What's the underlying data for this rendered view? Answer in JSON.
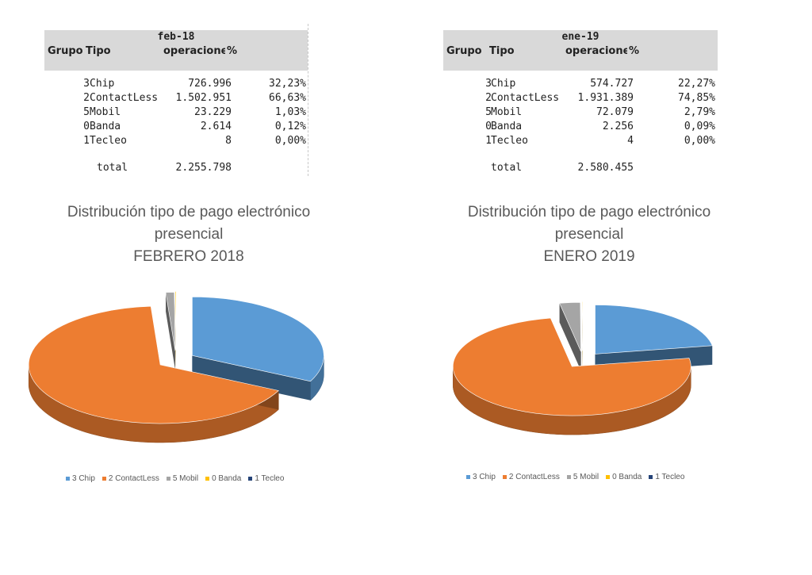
{
  "tables": [
    {
      "period": "feb-18",
      "headers": {
        "group": "Grupo",
        "type": "Tipo",
        "ops": "operacione:",
        "pct": "%"
      },
      "rows": [
        {
          "group": "3",
          "type": "Chip",
          "ops": "726.996",
          "pct": "32,23%"
        },
        {
          "group": "2",
          "type": "ContactLess",
          "ops": "1.502.951",
          "pct": "66,63%"
        },
        {
          "group": "5",
          "type": "Mobil",
          "ops": "23.229",
          "pct": "1,03%"
        },
        {
          "group": "0",
          "type": "Banda",
          "ops": "2.614",
          "pct": "0,12%"
        },
        {
          "group": "1",
          "type": "Tecleo",
          "ops": "8",
          "pct": "0,00%"
        }
      ],
      "total_label": "total",
      "total_value": "2.255.798"
    },
    {
      "period": "ene-19",
      "headers": {
        "group": "Grupo",
        "type": "Tipo",
        "ops": "operacione:",
        "pct": "%"
      },
      "rows": [
        {
          "group": "3",
          "type": "Chip",
          "ops": "574.727",
          "pct": "22,27%"
        },
        {
          "group": "2",
          "type": "ContactLess",
          "ops": "1.931.389",
          "pct": "74,85%"
        },
        {
          "group": "5",
          "type": "Mobil",
          "ops": "72.079",
          "pct": "2,79%"
        },
        {
          "group": "0",
          "type": "Banda",
          "ops": "2.256",
          "pct": "0,09%"
        },
        {
          "group": "1",
          "type": "Tecleo",
          "ops": "4",
          "pct": "0,00%"
        }
      ],
      "total_label": "total",
      "total_value": "2.580.455"
    }
  ],
  "chart_data": [
    {
      "type": "pie",
      "title_lines": [
        "Distribución tipo de pago electrónico",
        "presencial",
        "FEBRERO 2018"
      ],
      "categories": [
        "3 Chip",
        "2 ContactLess",
        "5 Mobil",
        "0 Banda",
        "1 Tecleo"
      ],
      "values": [
        726996,
        1502951,
        23229,
        2614,
        8
      ],
      "colors": [
        "#5b9bd5",
        "#ed7d31",
        "#a5a5a5",
        "#ffc000",
        "#264478"
      ],
      "legend_position": "bottom",
      "exploded": true,
      "three_d": true
    },
    {
      "type": "pie",
      "title_lines": [
        "Distribución tipo de pago electrónico",
        "presencial",
        "ENERO 2019"
      ],
      "categories": [
        "3 Chip",
        "2 ContactLess",
        "5 Mobil",
        "0 Banda",
        "1 Tecleo"
      ],
      "values": [
        574727,
        1931389,
        72079,
        2256,
        4
      ],
      "colors": [
        "#5b9bd5",
        "#ed7d31",
        "#a5a5a5",
        "#ffc000",
        "#264478"
      ],
      "legend_position": "bottom",
      "exploded": true,
      "three_d": true
    }
  ]
}
